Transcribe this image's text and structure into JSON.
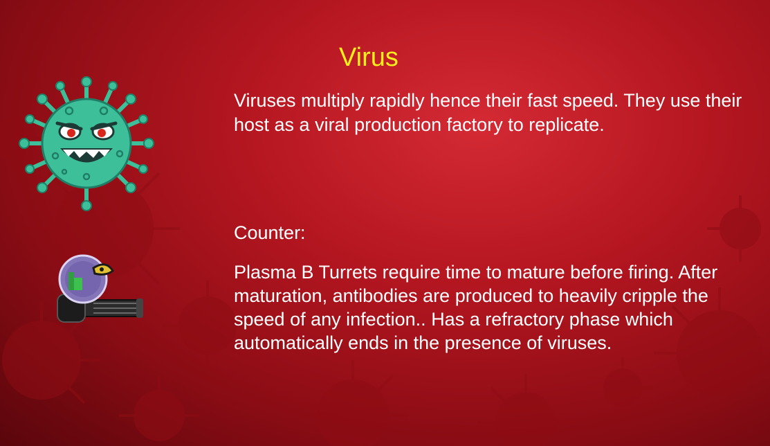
{
  "card": {
    "title": "Virus",
    "description": "Viruses multiply rapidly hence their fast speed. They use their host as a viral production factory to replicate.",
    "counter_label": "Counter:",
    "counter_description": "Plasma B Turrets require time to mature before firing. After maturation, antibodies are produced to heavily cripple the speed of any infection.. Has a refractory phase which automatically ends in the presence of viruses."
  },
  "icons": {
    "enemy": "virus-icon",
    "counter": "plasma-b-turret-icon",
    "background": "virus-particles-background"
  },
  "colors": {
    "title": "#f6ef1c",
    "text": "#ffffff",
    "background": "#b41620",
    "virus_body": "#3dbf9a"
  }
}
